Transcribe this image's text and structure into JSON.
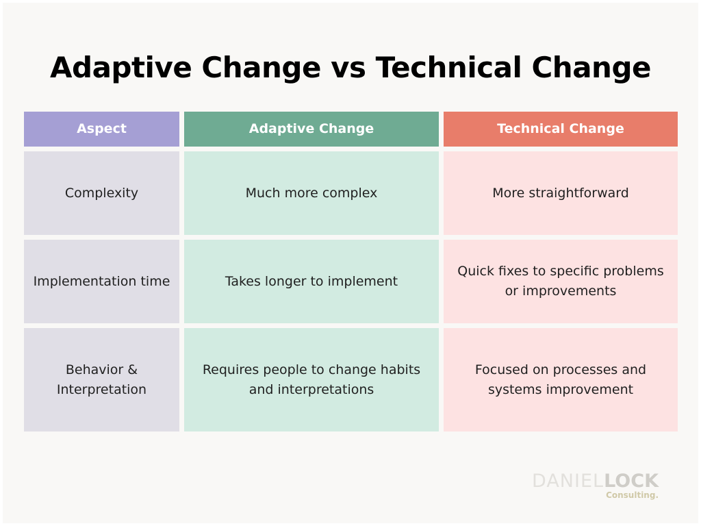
{
  "title": "Adaptive Change vs Technical Change",
  "colors": {
    "aspect_header": "#a59fd4",
    "adaptive_header": "#6fab93",
    "technical_header": "#e87d6a",
    "aspect_cell": "#e0dee6",
    "adaptive_cell": "#d2ebe1",
    "technical_cell": "#fde2e2"
  },
  "table": {
    "headers": [
      "Aspect",
      "Adaptive Change",
      "Technical Change"
    ],
    "rows": [
      {
        "aspect": "Complexity",
        "adaptive": "Much more complex",
        "technical": "More straightforward"
      },
      {
        "aspect": "Implementation time",
        "adaptive": "Takes longer to implement",
        "technical": "Quick fixes to specific problems or improvements"
      },
      {
        "aspect": "Behavior & Interpretation",
        "adaptive": "Requires people to change habits and interpretations",
        "technical": "Focused on processes and systems improvement"
      }
    ]
  },
  "logo": {
    "part1": "DANIEL",
    "part2": "LOCK",
    "sub": "Consulting."
  }
}
